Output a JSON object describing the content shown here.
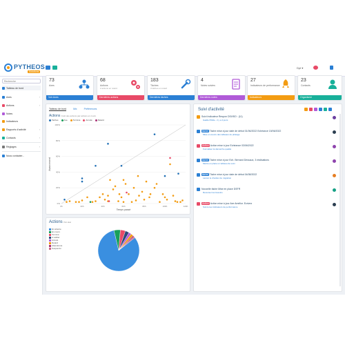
{
  "header": {
    "brand": "PYTHEOS",
    "brand_sub": "Solutions",
    "user": "Dpt"
  },
  "sidebar": {
    "search_placeholder": "Recherche",
    "items": [
      {
        "label": "Tableau de bord",
        "icon": "dashboard-icon"
      },
      {
        "label": "Axes",
        "icon": "axes-icon"
      },
      {
        "label": "Actions",
        "icon": "actions-icon"
      },
      {
        "label": "Notes",
        "icon": "notes-icon"
      },
      {
        "label": "Indicateurs",
        "icon": "indicators-icon"
      },
      {
        "label": "Rapports d'activité",
        "icon": "reports-icon"
      },
      {
        "label": "Contacts",
        "icon": "contacts-icon"
      },
      {
        "label": "Réglages",
        "icon": "settings-icon"
      },
      {
        "label": "Nous contacter...",
        "icon": "contact-us-icon"
      }
    ]
  },
  "cards": [
    {
      "num": "73",
      "label": "Axes",
      "sub": "",
      "foot": "Voir Axes",
      "color": "#2a7fd4"
    },
    {
      "num": "68",
      "label": "Actions",
      "sub": "2 actions en retard",
      "foot": "Dernières actions",
      "color": "#e84a67"
    },
    {
      "num": "183",
      "label": "Tâches",
      "sub": "3 tâches en retard",
      "foot": "Dernières tâches",
      "color": "#2a7fd4"
    },
    {
      "num": "4",
      "label": "Notes suivies",
      "sub": "",
      "foot": "Dernières notes",
      "color": "#b05ad8"
    },
    {
      "num": "27",
      "label": "Indicateurs de performance",
      "sub": "",
      "foot": "Indicateurs",
      "color": "#f39c12"
    },
    {
      "num": "23",
      "label": "Contacts",
      "sub": "",
      "foot": "Organisme",
      "color": "#18b09a"
    }
  ],
  "actions_panel": {
    "title": "Actions",
    "subtitle": "Coût des actions par actions en cours",
    "tabs": [
      "Tableau de bord",
      "Mix",
      "Préférences"
    ],
    "legend": [
      {
        "label": "Taches",
        "color": "#1f6fb5"
      },
      {
        "label": "Axe",
        "color": "#18a05a"
      },
      {
        "label": "Terminé",
        "color": "#f39c12"
      },
      {
        "label": "Annulé",
        "color": "#e84a67"
      },
      {
        "label": "Retard",
        "color": "#aa3377"
      }
    ]
  },
  "chart_data": [
    {
      "type": "scatter",
      "xlabel": "Temps passé",
      "ylabel": "Avancement",
      "x_ticks": [
        "0h",
        "20h",
        "40h",
        "60h",
        "80h",
        "100h",
        "120h"
      ],
      "y_ticks": [
        "0%",
        "20%",
        "40%",
        "60%",
        "80%",
        "100%"
      ],
      "xlim": [
        0,
        120
      ],
      "ylim": [
        0,
        100
      ],
      "series": [
        {
          "name": "Taches",
          "color": "#1f6fb5",
          "points": [
            [
              3,
              5
            ],
            [
              20,
              28
            ],
            [
              20,
              32
            ],
            [
              33,
              48
            ],
            [
              45,
              76
            ],
            [
              58,
              48
            ],
            [
              90,
              88
            ],
            [
              100,
              35
            ],
            [
              113,
              38
            ]
          ]
        },
        {
          "name": "Terminé",
          "color": "#f39c12",
          "points": [
            [
              5,
              2
            ],
            [
              8,
              3
            ],
            [
              14,
              2
            ],
            [
              17,
              2
            ],
            [
              20,
              4
            ],
            [
              25,
              8
            ],
            [
              30,
              2
            ],
            [
              33,
              3
            ],
            [
              37,
              8
            ],
            [
              40,
              12
            ],
            [
              42,
              5
            ],
            [
              45,
              3
            ],
            [
              45,
              10
            ],
            [
              47,
              30
            ],
            [
              50,
              18
            ],
            [
              52,
              22
            ],
            [
              55,
              3
            ],
            [
              56,
              12
            ],
            [
              58,
              8
            ],
            [
              60,
              2
            ],
            [
              60,
              30
            ],
            [
              62,
              25
            ],
            [
              65,
              12
            ],
            [
              68,
              2
            ],
            [
              70,
              20
            ],
            [
              72,
              4
            ],
            [
              74,
              35
            ],
            [
              75,
              10
            ],
            [
              78,
              15
            ],
            [
              80,
              5
            ],
            [
              82,
              28
            ],
            [
              85,
              8
            ],
            [
              86,
              12
            ],
            [
              90,
              20
            ],
            [
              92,
              25
            ],
            [
              95,
              2
            ],
            [
              98,
              12
            ],
            [
              100,
              8
            ],
            [
              102,
              5
            ],
            [
              105,
              50
            ],
            [
              108,
              10
            ],
            [
              110,
              3
            ],
            [
              112,
              2
            ],
            [
              115,
              2
            ],
            [
              117,
              4
            ]
          ]
        },
        {
          "name": "Annulé",
          "color": "#e84a67",
          "points": [
            [
              46,
              3
            ],
            [
              63,
              14
            ],
            [
              105,
              58
            ]
          ]
        },
        {
          "name": "Axe",
          "color": "#18a05a",
          "points": [
            [
              28,
              2
            ]
          ]
        }
      ]
    },
    {
      "type": "pie",
      "title": "Actions",
      "subtitle": "Par état",
      "labels": [
        "En attente",
        "En cours",
        "Terminé",
        "A valider",
        "Annulé",
        "Retard",
        "Abandonné",
        "Suspendu"
      ],
      "values": [
        82,
        5,
        4,
        3,
        2,
        2,
        1,
        1
      ],
      "colors": [
        "#3a8fe0",
        "#18a05a",
        "#e84a67",
        "#2c4a7a",
        "#b05ad8",
        "#f39c12",
        "#aa3377",
        "#cc6688"
      ]
    }
  ],
  "activity_panel": {
    "title": "Suivi d'activité",
    "items": [
      {
        "color": "#f39c12",
        "title": "Suivi Indicateur Respon DSI/ISO : (11)",
        "sub": "Gaëlle Pitilde - il y a 4 jours",
        "badge": "",
        "badge_color": ""
      },
      {
        "color": "#2a7fd4",
        "title": "Tâche mise à jour  date de début 01/06/2022 Echéance 15/06/2022",
        "sub": "Mise en œuvre des tableaux de pilotage",
        "badge": "tâche",
        "badge_color": "#2a7fd4"
      },
      {
        "color": "#e84a67",
        "title": "Action mise à jour  Echéance 03/06/2022",
        "sub": "Formaliser la démarche qualité",
        "badge": "Action",
        "badge_color": "#e84a67"
      },
      {
        "color": "#2a7fd4",
        "title": "Tâche mise à jour  Ech. Bernard Dessaux, 3 réalisations",
        "sub": "Mettre en place un tableau de suivi",
        "badge": "tâche",
        "badge_color": "#2a7fd4"
      },
      {
        "color": "#2a7fd4",
        "title": "Tâche mise à jour  date de début 04/08/2022",
        "sub": "Lancer le chantier de migration",
        "badge": "tâche",
        "badge_color": "#2a7fd4"
      },
      {
        "color": "#2a7fd4",
        "title": "Nouvelle tâche  Mise en place DSFR",
        "sub": "Recenser les besoins",
        "badge": "",
        "badge_color": ""
      },
      {
        "color": "#e84a67",
        "title": "Action mise à jour  Axe Amélior. Ecrivez",
        "sub": "Suivre les indicateurs de performance",
        "badge": "Action",
        "badge_color": "#e84a67"
      }
    ]
  }
}
